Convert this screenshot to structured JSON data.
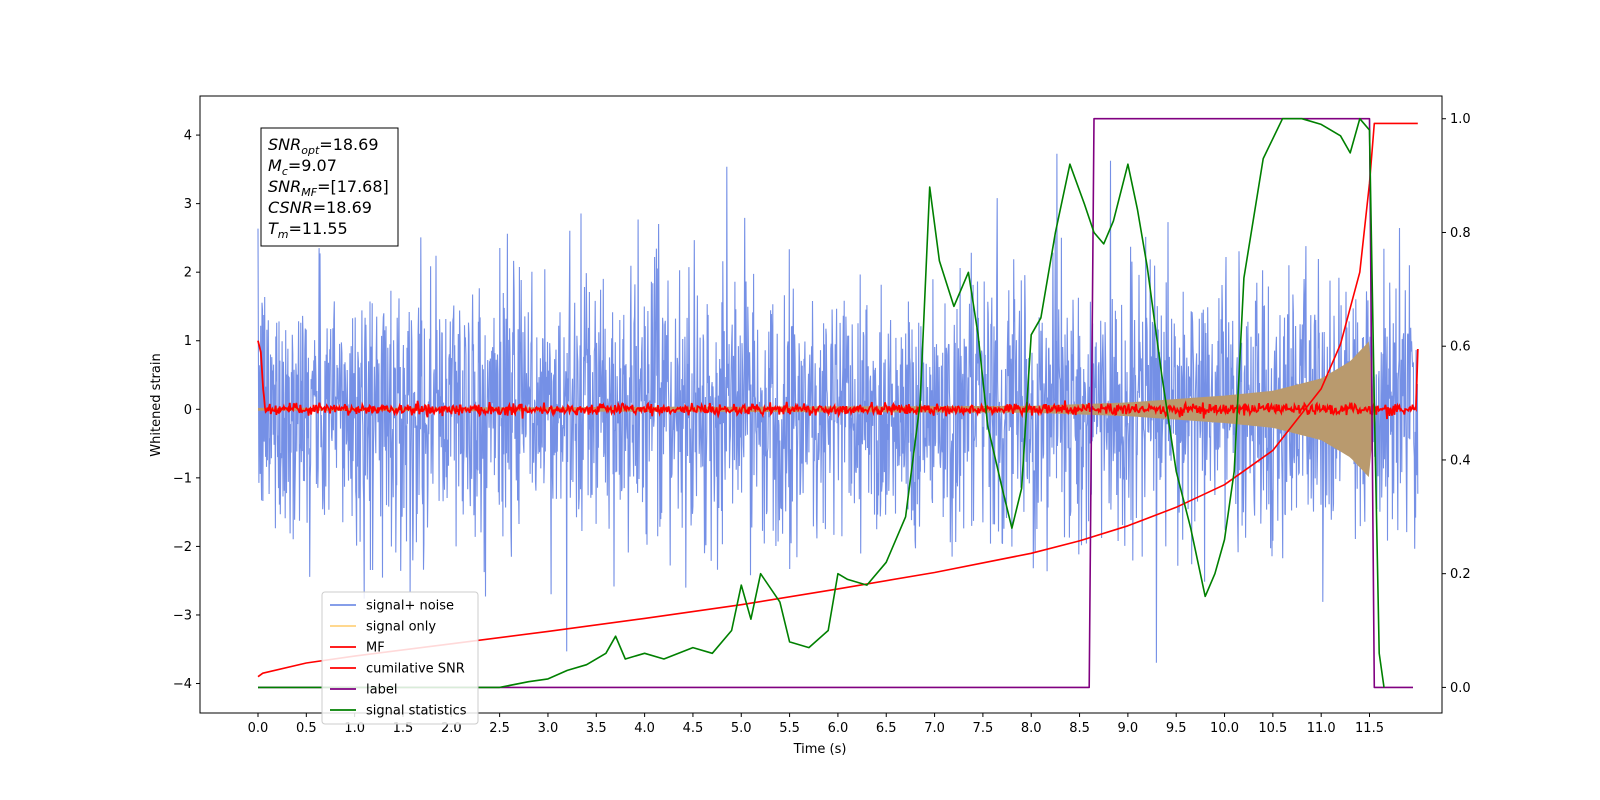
{
  "chart_data": {
    "type": "line",
    "xlabel": "Time (s)",
    "ylabel_left": "Whitened strain",
    "ylabel_right": "",
    "xlim": [
      -0.6,
      12.25
    ],
    "ylim_left": [
      -4.43,
      4.57
    ],
    "ylim_right": [
      -0.045,
      1.04
    ],
    "x_ticks": [
      0.0,
      0.5,
      1.0,
      1.5,
      2.0,
      2.5,
      3.0,
      3.5,
      4.0,
      4.5,
      5.0,
      5.5,
      6.0,
      6.5,
      7.0,
      7.5,
      8.0,
      8.5,
      9.0,
      9.5,
      10.0,
      10.5,
      11.0,
      11.5
    ],
    "x_tick_labels": [
      "0.0",
      "0.5",
      "1.0",
      "1.5",
      "2.0",
      "2.5",
      "3.0",
      "3.5",
      "4.0",
      "4.5",
      "5.0",
      "5.5",
      "6.0",
      "6.5",
      "7.0",
      "7.5",
      "8.0",
      "8.5",
      "9.0",
      "9.5",
      "10.0",
      "10.5",
      "11.0",
      "11.5"
    ],
    "y_left_ticks": [
      -4,
      -3,
      -2,
      -1,
      0,
      1,
      2,
      3,
      4
    ],
    "y_left_tick_labels": [
      "−4",
      "−3",
      "−2",
      "−1",
      "0",
      "1",
      "2",
      "3",
      "4"
    ],
    "y_right_ticks": [
      0.0,
      0.2,
      0.4,
      0.6,
      0.8,
      1.0
    ],
    "y_right_tick_labels": [
      "0.0",
      "0.2",
      "0.4",
      "0.6",
      "0.8",
      "1.0"
    ],
    "grid": false,
    "legend_position": "lower-left",
    "series": [
      {
        "name": "signal+ noise",
        "color": "#7590e6",
        "axis": "left",
        "description_range": {
          "x": [
            0.0,
            12.0
          ],
          "typical_amplitude": 1.8,
          "peak_max": 4.17,
          "peak_min": -3.97
        }
      },
      {
        "name": "signal only",
        "color": "#ffd27f",
        "axis": "left",
        "envelope": {
          "x": [
            0.0,
            8.0,
            9.0,
            10.0,
            10.5,
            11.0,
            11.3,
            11.5,
            11.55
          ],
          "amp": [
            0.02,
            0.05,
            0.1,
            0.2,
            0.27,
            0.45,
            0.7,
            1.0,
            0.0
          ]
        }
      },
      {
        "name": "MF",
        "color": "#ff0000",
        "axis": "left",
        "baseline": 0.0,
        "noise_amplitude": 0.07,
        "start_value": 1.0,
        "end_value": 0.88
      },
      {
        "name": "cumilative SNR",
        "color": "#ff0000",
        "axis": "left",
        "x": [
          0.0,
          0.05,
          0.5,
          1.0,
          2.0,
          3.0,
          4.0,
          5.0,
          6.0,
          7.0,
          8.0,
          8.5,
          9.0,
          9.5,
          10.0,
          10.5,
          11.0,
          11.2,
          11.4,
          11.5,
          11.55,
          12.0
        ],
        "y": [
          -3.9,
          -3.85,
          -3.7,
          -3.6,
          -3.42,
          -3.24,
          -3.05,
          -2.85,
          -2.62,
          -2.38,
          -2.1,
          -1.92,
          -1.7,
          -1.43,
          -1.1,
          -0.6,
          0.3,
          0.95,
          2.0,
          3.3,
          4.17,
          4.17
        ]
      },
      {
        "name": "label",
        "color": "#800080",
        "axis": "right",
        "x": [
          0.0,
          8.6,
          8.65,
          11.5,
          11.55,
          11.95
        ],
        "y": [
          0.0,
          0.0,
          1.0,
          1.0,
          0.0,
          0.0
        ]
      },
      {
        "name": "signal statistics",
        "color": "#008000",
        "axis": "right",
        "x": [
          0.0,
          0.5,
          1.0,
          1.5,
          2.0,
          2.5,
          2.8,
          3.0,
          3.2,
          3.4,
          3.6,
          3.7,
          3.8,
          4.0,
          4.2,
          4.5,
          4.7,
          4.9,
          5.0,
          5.1,
          5.2,
          5.4,
          5.5,
          5.7,
          5.9,
          6.0,
          6.1,
          6.3,
          6.5,
          6.7,
          6.85,
          6.95,
          7.05,
          7.2,
          7.35,
          7.45,
          7.55,
          7.7,
          7.8,
          7.9,
          8.0,
          8.1,
          8.25,
          8.4,
          8.55,
          8.65,
          8.75,
          8.85,
          9.0,
          9.1,
          9.2,
          9.35,
          9.5,
          9.65,
          9.8,
          9.9,
          10.0,
          10.1,
          10.2,
          10.4,
          10.6,
          10.8,
          11.0,
          11.2,
          11.3,
          11.4,
          11.5,
          11.55,
          11.6,
          11.65
        ],
        "y": [
          0.0,
          0.0,
          0.0,
          0.0,
          0.0,
          0.0,
          0.01,
          0.015,
          0.03,
          0.04,
          0.06,
          0.09,
          0.05,
          0.06,
          0.05,
          0.07,
          0.06,
          0.1,
          0.18,
          0.12,
          0.2,
          0.15,
          0.08,
          0.07,
          0.1,
          0.2,
          0.19,
          0.18,
          0.22,
          0.3,
          0.5,
          0.88,
          0.75,
          0.67,
          0.73,
          0.62,
          0.46,
          0.35,
          0.28,
          0.35,
          0.62,
          0.65,
          0.8,
          0.92,
          0.85,
          0.8,
          0.78,
          0.82,
          0.92,
          0.84,
          0.74,
          0.55,
          0.38,
          0.28,
          0.16,
          0.2,
          0.26,
          0.38,
          0.72,
          0.93,
          1.0,
          1.0,
          0.99,
          0.97,
          0.94,
          1.0,
          0.98,
          0.5,
          0.06,
          0.0
        ]
      }
    ],
    "stats_box": {
      "lines": [
        {
          "base": "SNR",
          "sub": "opt",
          "value": "=18.69"
        },
        {
          "base": "M",
          "sub": "c",
          "value": "=9.07"
        },
        {
          "base": "SNR",
          "sub": "MF",
          "value": "=[17.68]"
        },
        {
          "base": "CSNR",
          "sub": "",
          "value": "=18.69"
        },
        {
          "base": "T",
          "sub": "m",
          "value": "=11.55"
        }
      ]
    }
  }
}
